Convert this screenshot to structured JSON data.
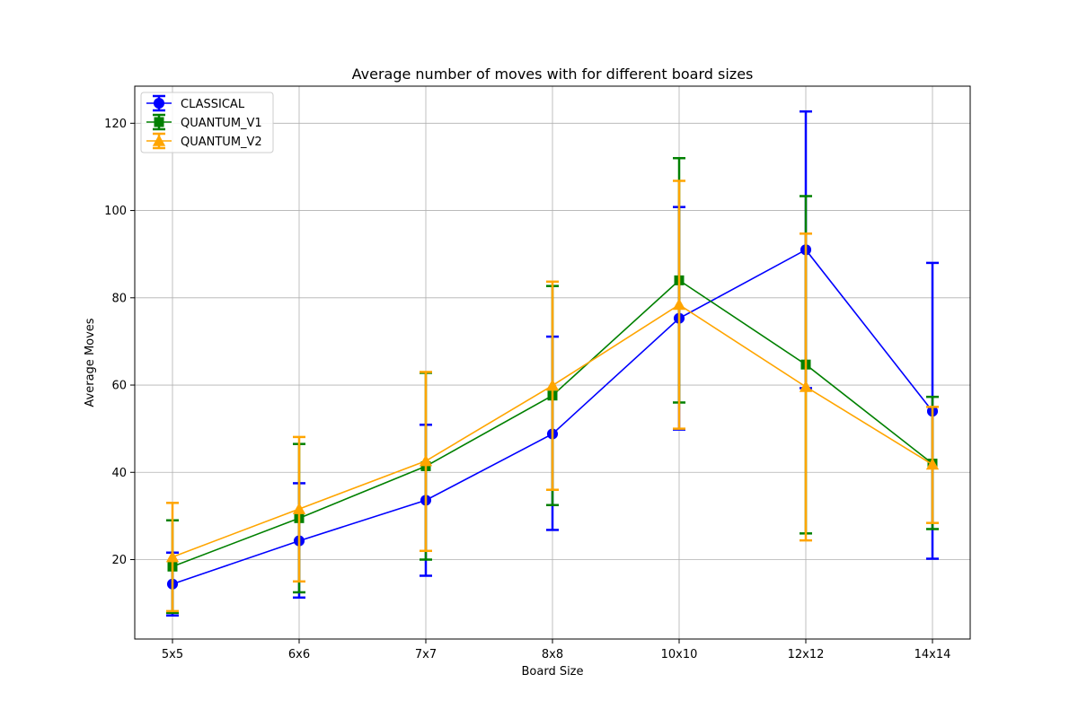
{
  "chart_data": {
    "type": "line",
    "title": "Average number of moves with for different board sizes",
    "xlabel": "Board Size",
    "ylabel": "Average Moves",
    "categories": [
      "5x5",
      "6x6",
      "7x7",
      "8x8",
      "10x10",
      "12x12",
      "14x14"
    ],
    "ylim": [
      1.8,
      128.5
    ],
    "yticks": [
      20,
      40,
      60,
      80,
      100,
      120
    ],
    "grid": true,
    "legend_position": "upper-left",
    "error_bars": true,
    "series": [
      {
        "name": "CLASSICAL",
        "color": "#0000ff",
        "marker": "circle",
        "values": [
          14.4,
          24.3,
          33.6,
          48.8,
          75.3,
          91.0,
          54.0
        ],
        "err_low": [
          7.2,
          11.3,
          16.3,
          26.8,
          49.8,
          59.3,
          20.2
        ],
        "err_high": [
          21.6,
          37.5,
          50.9,
          71.1,
          100.8,
          122.7,
          88.0
        ]
      },
      {
        "name": "QUANTUM_V1",
        "color": "#008000",
        "marker": "square",
        "values": [
          18.4,
          29.5,
          41.4,
          57.6,
          84.0,
          64.7,
          42.0
        ],
        "err_low": [
          7.8,
          12.5,
          20.0,
          32.5,
          56.0,
          26.0,
          27.0
        ],
        "err_high": [
          29.0,
          46.5,
          62.8,
          82.7,
          112.0,
          103.3,
          57.3
        ]
      },
      {
        "name": "QUANTUM_V2",
        "color": "#ffa500",
        "marker": "triangle",
        "values": [
          20.6,
          31.6,
          42.6,
          59.9,
          78.4,
          59.6,
          41.8
        ],
        "err_low": [
          8.2,
          15.0,
          22.0,
          36.0,
          50.0,
          24.4,
          28.4
        ],
        "err_high": [
          33.0,
          48.1,
          63.0,
          83.7,
          106.8,
          94.7,
          55.0
        ]
      }
    ]
  }
}
